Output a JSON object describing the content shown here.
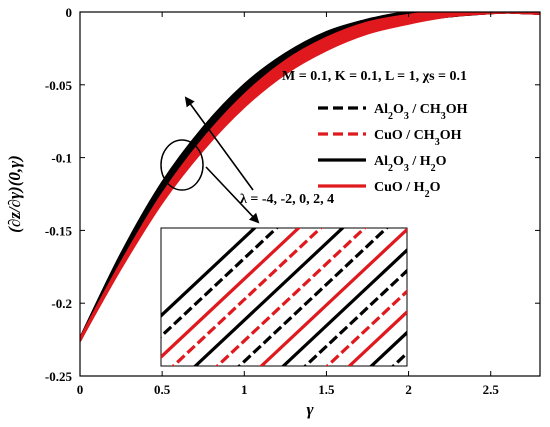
{
  "chart_data": {
    "type": "line",
    "xlabel": "γ",
    "ylabel": "(∂z/∂γ)(0,γ)",
    "xlim": [
      0,
      2.8
    ],
    "ylim": [
      -0.25,
      0
    ],
    "xticks": [
      "0",
      "0.5",
      "1",
      "1.5",
      "2",
      "2.5"
    ],
    "xtick_values": [
      0,
      0.5,
      1,
      1.5,
      2,
      2.5
    ],
    "yticks": [
      "0",
      "-0.05",
      "-0.1",
      "-0.15",
      "-0.2",
      "-0.25"
    ],
    "ytick_values": [
      0,
      -0.05,
      -0.1,
      -0.15,
      -0.2,
      -0.25
    ],
    "grid": false,
    "parameters": "M = 0.1, K = 0.1, L = 1, χs = 0.1",
    "annotation": "λ = -4, -2, 0, 2, 4",
    "lambda_values": [
      -4,
      -2,
      0,
      2,
      4
    ],
    "legend": [
      {
        "label": "Al2O3 / CH3OH",
        "color": "#000000",
        "style": "dashed"
      },
      {
        "label": "CuO / CH3OH",
        "color": "#e0191e",
        "style": "dashed"
      },
      {
        "label": "Al2O3 / H2O",
        "color": "#000000",
        "style": "solid"
      },
      {
        "label": "CuO / H2O",
        "color": "#e0191e",
        "style": "solid"
      }
    ],
    "legend_position": "right",
    "series": [
      {
        "name": "Al2O3 / CH3OH",
        "color": "#000000",
        "style": "dashed",
        "x": [
          0,
          0.25,
          0.5,
          0.75,
          1.0,
          1.25,
          1.5,
          1.75,
          2.0,
          2.25,
          2.5,
          2.8
        ],
        "y": [
          -0.225,
          -0.17,
          -0.122,
          -0.085,
          -0.056,
          -0.034,
          -0.019,
          -0.009,
          -0.004,
          -0.001,
          0,
          0
        ]
      },
      {
        "name": "CuO / CH3OH",
        "color": "#e0191e",
        "style": "dashed",
        "x": [
          0,
          0.25,
          0.5,
          0.75,
          1.0,
          1.25,
          1.5,
          1.75,
          2.0,
          2.25,
          2.5,
          2.8
        ],
        "y": [
          -0.225,
          -0.172,
          -0.125,
          -0.088,
          -0.058,
          -0.036,
          -0.02,
          -0.01,
          -0.004,
          -0.001,
          0,
          0
        ]
      },
      {
        "name": "Al2O3 / H2O",
        "color": "#000000",
        "style": "solid",
        "x": [
          0,
          0.25,
          0.5,
          0.75,
          1.0,
          1.25,
          1.5,
          1.75,
          2.0,
          2.25,
          2.5,
          2.8
        ],
        "y": [
          -0.225,
          -0.168,
          -0.12,
          -0.083,
          -0.054,
          -0.033,
          -0.018,
          -0.009,
          -0.003,
          -0.001,
          0,
          0
        ]
      },
      {
        "name": "CuO / H2O",
        "color": "#e0191e",
        "style": "solid",
        "x": [
          0,
          0.25,
          0.5,
          0.75,
          1.0,
          1.25,
          1.5,
          1.75,
          2.0,
          2.25,
          2.5,
          2.8
        ],
        "y": [
          -0.225,
          -0.174,
          -0.128,
          -0.091,
          -0.061,
          -0.038,
          -0.022,
          -0.011,
          -0.005,
          -0.001,
          0,
          0
        ]
      }
    ],
    "inset": {
      "present": true,
      "lines": [
        {
          "color": "#000000",
          "style": "solid"
        },
        {
          "color": "#000000",
          "style": "dashed"
        },
        {
          "color": "#e0191e",
          "style": "solid"
        },
        {
          "color": "#e0191e",
          "style": "dashed"
        },
        {
          "color": "#000000",
          "style": "solid"
        },
        {
          "color": "#e0191e",
          "style": "dashed"
        },
        {
          "color": "#000000",
          "style": "dashed"
        },
        {
          "color": "#e0191e",
          "style": "solid"
        },
        {
          "color": "#000000",
          "style": "solid"
        },
        {
          "color": "#000000",
          "style": "dashed"
        },
        {
          "color": "#e0191e",
          "style": "dashed"
        },
        {
          "color": "#e0191e",
          "style": "solid"
        },
        {
          "color": "#000000",
          "style": "solid"
        },
        {
          "color": "#000000",
          "style": "dashed"
        },
        {
          "color": "#e0191e",
          "style": "solid"
        }
      ]
    }
  }
}
